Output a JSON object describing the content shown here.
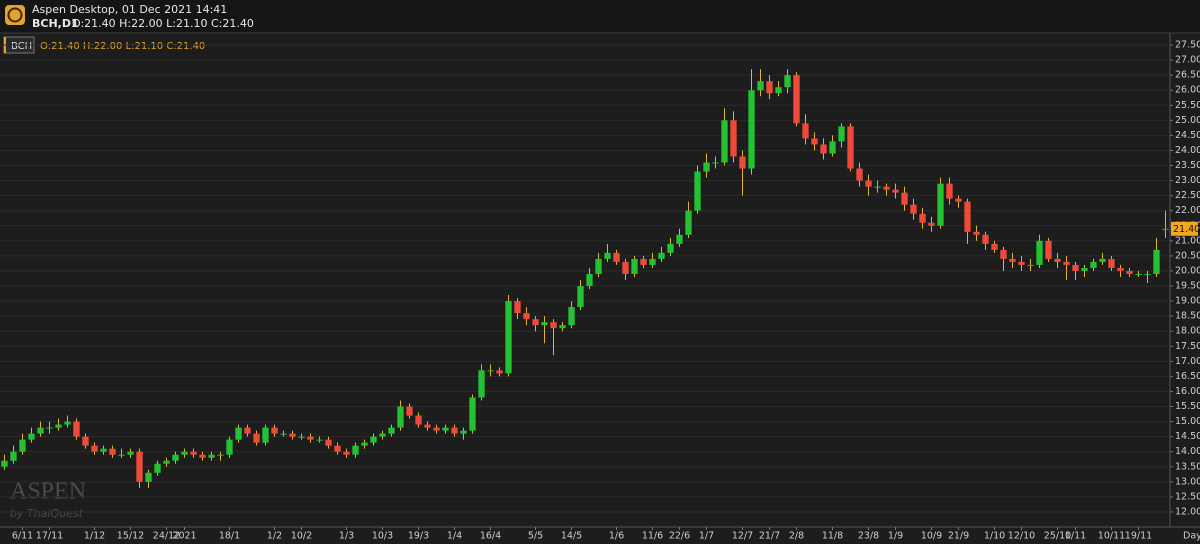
{
  "header": {
    "title": "Aspen Desktop, 01 Dec 2021 14:41",
    "symbol": "BCH,D1",
    "ohlc": "O:21.40 H:22.00 L:21.10 C:21.40"
  },
  "legend": {
    "symbol": "BCH",
    "ohlc": "O:21.40 H:22.00 L:21.10 C:21.40"
  },
  "watermark": {
    "brand": "ASPEN",
    "by": "by ThaiQuest"
  },
  "timeframe": "Day",
  "chart_data": {
    "type": "candlestick",
    "colors": {
      "up": "#22c232",
      "down": "#ee4a3a",
      "wick": "#e0b43a"
    },
    "grid": true,
    "ylim": [
      11.5,
      27.8
    ],
    "yticks": [
      {
        "value": 12,
        "label": "12.00"
      },
      {
        "value": 12.5,
        "label": "12.50"
      },
      {
        "value": 13,
        "label": "13.00"
      },
      {
        "value": 13.5,
        "label": "13.50"
      },
      {
        "value": 14,
        "label": "14.00"
      },
      {
        "value": 14.5,
        "label": "14.50"
      },
      {
        "value": 15,
        "label": "15.00"
      },
      {
        "value": 15.5,
        "label": "15.50"
      },
      {
        "value": 16,
        "label": "16.00"
      },
      {
        "value": 16.5,
        "label": "16.50"
      },
      {
        "value": 17,
        "label": "17.00"
      },
      {
        "value": 17.5,
        "label": "17.50"
      },
      {
        "value": 18,
        "label": "18.00"
      },
      {
        "value": 18.5,
        "label": "18.50"
      },
      {
        "value": 19,
        "label": "19.00"
      },
      {
        "value": 19.5,
        "label": "19.50"
      },
      {
        "value": 20,
        "label": "20.00"
      },
      {
        "value": 20.5,
        "label": "20.50"
      },
      {
        "value": 21,
        "label": "21.00"
      },
      {
        "value": 21.5,
        "label": "21.50"
      },
      {
        "value": 22,
        "label": "22.00"
      },
      {
        "value": 22.5,
        "label": "22.50"
      },
      {
        "value": 23,
        "label": "23.00"
      },
      {
        "value": 23.5,
        "label": "23.50"
      },
      {
        "value": 24,
        "label": "24.00"
      },
      {
        "value": 24.5,
        "label": "24.50"
      },
      {
        "value": 25,
        "label": "25.00"
      },
      {
        "value": 25.5,
        "label": "25.50"
      },
      {
        "value": 26,
        "label": "26.00"
      },
      {
        "value": 26.5,
        "label": "26.50"
      },
      {
        "value": 27,
        "label": "27.00"
      },
      {
        "value": 27.5,
        "label": "27.50"
      }
    ],
    "price_tag": {
      "value": 21.4,
      "label": "21.40"
    },
    "categories": [
      null,
      null,
      "6/11",
      null,
      null,
      "17/11",
      null,
      null,
      null,
      null,
      "1/12",
      null,
      null,
      null,
      "15/12",
      null,
      null,
      null,
      "24/12",
      null,
      "2021",
      null,
      null,
      null,
      null,
      "18/1",
      null,
      null,
      null,
      null,
      "1/2",
      null,
      null,
      "10/2",
      null,
      null,
      null,
      null,
      "1/3",
      null,
      null,
      null,
      "10/3",
      null,
      null,
      null,
      "19/3",
      null,
      null,
      null,
      "1/4",
      null,
      null,
      null,
      "16/4",
      null,
      null,
      null,
      null,
      "5/5",
      null,
      null,
      null,
      "14/5",
      null,
      null,
      null,
      null,
      "1/6",
      null,
      null,
      null,
      "11/6",
      null,
      null,
      "22/6",
      null,
      null,
      "1/7",
      null,
      null,
      null,
      "12/7",
      null,
      null,
      "21/7",
      null,
      null,
      "2/8",
      null,
      null,
      null,
      "11/8",
      null,
      null,
      null,
      "23/8",
      null,
      null,
      "1/9",
      null,
      null,
      null,
      "10/9",
      null,
      null,
      "21/9",
      null,
      null,
      null,
      "1/10",
      null,
      null,
      "12/10",
      null,
      null,
      null,
      "25/10",
      null,
      "1/11",
      null,
      null,
      null,
      "10/11",
      null,
      null,
      "19/11",
      null,
      null,
      null
    ],
    "open": [
      13.5,
      13.7,
      14.0,
      14.4,
      14.6,
      14.8,
      14.8,
      14.9,
      15.0,
      14.5,
      14.2,
      14.0,
      14.1,
      13.9,
      13.9,
      14.0,
      13.0,
      13.3,
      13.6,
      13.7,
      13.9,
      14.0,
      13.9,
      13.8,
      13.9,
      13.9,
      14.4,
      14.8,
      14.6,
      14.3,
      14.8,
      14.6,
      14.6,
      14.5,
      14.5,
      14.4,
      14.4,
      14.2,
      14.0,
      13.9,
      14.2,
      14.3,
      14.5,
      14.6,
      14.8,
      15.5,
      15.2,
      14.9,
      14.8,
      14.7,
      14.8,
      14.6,
      14.7,
      15.8,
      16.7,
      16.7,
      16.6,
      19.0,
      18.6,
      18.4,
      18.2,
      18.3,
      18.1,
      18.2,
      18.8,
      19.5,
      19.9,
      20.4,
      20.6,
      20.3,
      19.9,
      20.4,
      20.2,
      20.4,
      20.6,
      20.9,
      21.2,
      22.0,
      23.3,
      23.6,
      23.6,
      25.0,
      23.8,
      23.4,
      26.0,
      26.3,
      25.9,
      26.1,
      26.5,
      24.9,
      24.4,
      24.2,
      23.9,
      24.3,
      24.8,
      23.4,
      23.0,
      22.8,
      22.8,
      22.7,
      22.6,
      22.2,
      21.9,
      21.6,
      21.5,
      22.9,
      22.4,
      22.3,
      21.3,
      21.2,
      20.9,
      20.7,
      20.4,
      20.3,
      20.2,
      20.2,
      21.0,
      20.4,
      20.3,
      20.2,
      20.0,
      20.1,
      20.3,
      20.4,
      20.1,
      20.0,
      19.9,
      19.9,
      19.9,
      21.4
    ],
    "high": [
      13.9,
      14.2,
      14.6,
      14.8,
      15.0,
      15.0,
      15.1,
      15.2,
      15.1,
      14.6,
      14.3,
      14.2,
      14.2,
      14.1,
      14.1,
      14.1,
      13.4,
      13.7,
      13.8,
      14.0,
      14.1,
      14.1,
      14.0,
      14.0,
      14.0,
      14.5,
      14.9,
      14.9,
      14.7,
      14.9,
      14.9,
      14.7,
      14.7,
      14.6,
      14.6,
      14.5,
      14.5,
      14.3,
      14.1,
      14.3,
      14.4,
      14.6,
      14.7,
      14.9,
      15.7,
      15.6,
      15.3,
      15.0,
      14.9,
      14.9,
      14.9,
      14.8,
      15.9,
      16.9,
      16.9,
      16.8,
      19.2,
      19.1,
      18.8,
      18.5,
      18.5,
      18.4,
      18.3,
      19.0,
      19.7,
      20.1,
      20.6,
      20.9,
      20.7,
      20.4,
      20.5,
      20.5,
      20.6,
      20.8,
      21.1,
      21.4,
      22.3,
      23.5,
      23.9,
      23.8,
      25.4,
      25.3,
      24.0,
      26.7,
      26.7,
      26.5,
      26.3,
      26.7,
      26.6,
      25.2,
      24.6,
      24.4,
      24.5,
      24.9,
      24.9,
      23.6,
      23.2,
      23.0,
      22.9,
      22.9,
      22.8,
      22.4,
      22.1,
      21.8,
      23.1,
      23.1,
      22.5,
      22.4,
      21.5,
      21.3,
      21.0,
      20.8,
      20.6,
      20.5,
      20.4,
      21.2,
      21.1,
      20.6,
      20.5,
      20.3,
      20.2,
      20.4,
      20.6,
      20.5,
      20.2,
      20.1,
      20.0,
      20.0,
      21.1,
      22.0
    ],
    "low": [
      13.4,
      13.6,
      13.9,
      14.3,
      14.5,
      14.6,
      14.7,
      14.8,
      14.4,
      14.1,
      13.9,
      13.9,
      13.8,
      13.8,
      13.8,
      12.8,
      12.8,
      13.2,
      13.5,
      13.6,
      13.8,
      13.8,
      13.7,
      13.7,
      13.7,
      13.8,
      14.3,
      14.5,
      14.2,
      14.2,
      14.5,
      14.5,
      14.4,
      14.4,
      14.3,
      14.3,
      14.1,
      13.9,
      13.8,
      13.8,
      14.1,
      14.2,
      14.4,
      14.5,
      14.7,
      15.1,
      14.8,
      14.7,
      14.6,
      14.6,
      14.5,
      14.4,
      14.6,
      15.7,
      16.5,
      16.5,
      16.5,
      18.4,
      18.2,
      18.0,
      17.6,
      17.2,
      18.0,
      18.1,
      18.7,
      19.4,
      19.8,
      20.3,
      20.2,
      19.7,
      19.8,
      20.1,
      20.1,
      20.3,
      20.5,
      20.8,
      21.1,
      21.9,
      23.1,
      23.4,
      23.5,
      23.6,
      22.5,
      23.2,
      25.8,
      25.7,
      25.8,
      25.9,
      24.8,
      24.2,
      24.0,
      23.7,
      23.8,
      24.1,
      23.3,
      22.8,
      22.5,
      22.6,
      22.5,
      22.4,
      22.0,
      21.7,
      21.4,
      21.3,
      21.4,
      22.2,
      22.1,
      20.9,
      21.0,
      20.7,
      20.6,
      20.0,
      20.1,
      20.0,
      20.0,
      20.1,
      20.3,
      20.1,
      19.7,
      19.7,
      19.8,
      20.0,
      20.2,
      20.0,
      19.8,
      19.8,
      19.8,
      19.6,
      19.8,
      21.1
    ],
    "close": [
      13.7,
      14.0,
      14.4,
      14.6,
      14.8,
      14.8,
      14.9,
      15.0,
      14.5,
      14.2,
      14.0,
      14.1,
      13.9,
      13.9,
      14.0,
      13.0,
      13.3,
      13.6,
      13.7,
      13.9,
      14.0,
      13.9,
      13.8,
      13.9,
      13.9,
      14.4,
      14.8,
      14.6,
      14.3,
      14.8,
      14.6,
      14.6,
      14.5,
      14.5,
      14.4,
      14.4,
      14.2,
      14.0,
      13.9,
      14.2,
      14.3,
      14.5,
      14.6,
      14.8,
      15.5,
      15.2,
      14.9,
      14.8,
      14.7,
      14.8,
      14.6,
      14.7,
      15.8,
      16.7,
      16.7,
      16.6,
      19.0,
      18.6,
      18.4,
      18.2,
      18.3,
      18.1,
      18.2,
      18.8,
      19.5,
      19.9,
      20.4,
      20.6,
      20.3,
      19.9,
      20.4,
      20.2,
      20.4,
      20.6,
      20.9,
      21.2,
      22.0,
      23.3,
      23.6,
      23.6,
      25.0,
      23.8,
      23.4,
      26.0,
      26.3,
      25.9,
      26.1,
      26.5,
      24.9,
      24.4,
      24.2,
      23.9,
      24.3,
      24.8,
      23.4,
      23.0,
      22.8,
      22.8,
      22.7,
      22.6,
      22.2,
      21.9,
      21.6,
      21.5,
      22.9,
      22.4,
      22.3,
      21.3,
      21.2,
      20.9,
      20.7,
      20.4,
      20.3,
      20.2,
      20.2,
      21.0,
      20.4,
      20.3,
      20.2,
      20.0,
      20.1,
      20.3,
      20.4,
      20.1,
      20.0,
      19.9,
      19.9,
      19.9,
      20.7,
      21.4
    ]
  }
}
